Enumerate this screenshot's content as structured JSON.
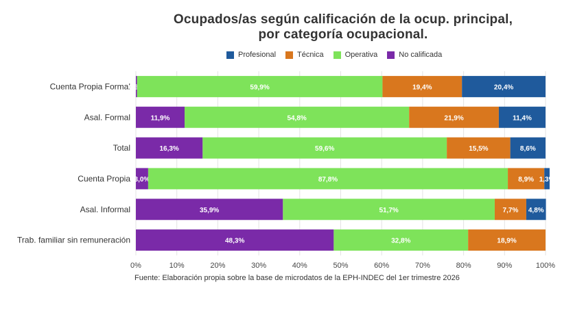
{
  "chart_data": {
    "type": "bar",
    "orientation": "horizontal",
    "stacked": "percent",
    "title_line1": "Ocupados/as según calificación de la ocup. principal,",
    "title_line2": "por categoría ocupacional.",
    "source": "Fuente: Elaboración propia sobre la base de microdatos de la EPH-INDEC del 1er trimestre 2026",
    "categories": [
      "Cuenta Propia Formal",
      "Asal. Formal",
      "Total",
      "Cuenta Propia",
      "Asal. Informal",
      "Trab. familiar sin remuneración"
    ],
    "series": [
      {
        "name": "No calificada",
        "color": "#7a2aa8",
        "values": [
          0.3,
          11.9,
          16.3,
          3.0,
          35.9,
          48.3
        ],
        "labels": [
          "0,3%",
          "11,9%",
          "16,3%",
          "3,0%",
          "35,9%",
          "48,3%"
        ]
      },
      {
        "name": "Operativa",
        "color": "#7ee35a",
        "values": [
          59.9,
          54.8,
          59.6,
          87.8,
          51.7,
          32.8
        ],
        "labels": [
          "59,9%",
          "54,8%",
          "59,6%",
          "87,8%",
          "51,7%",
          "32,8%"
        ]
      },
      {
        "name": "Técnica",
        "color": "#d9771e",
        "values": [
          19.4,
          21.9,
          15.5,
          8.9,
          7.7,
          18.9
        ],
        "labels": [
          "19,4%",
          "21,9%",
          "15,5%",
          "8,9%",
          "7,7%",
          "18,9%"
        ]
      },
      {
        "name": "Profesional",
        "color": "#1f5a9c",
        "values": [
          20.4,
          11.4,
          8.6,
          1.3,
          4.8,
          0
        ],
        "labels": [
          "20,4%",
          "11,4%",
          "8,6%",
          "1,3%",
          "4,8%",
          ""
        ]
      }
    ],
    "legend_order": [
      "Profesional",
      "Técnica",
      "Operativa",
      "No calificada"
    ],
    "x_ticks": [
      "0%",
      "10%",
      "20%",
      "30%",
      "40%",
      "50%",
      "60%",
      "70%",
      "80%",
      "90%",
      "100%"
    ],
    "xlim": [
      0,
      100
    ],
    "grid": true,
    "legend_position": "top"
  }
}
